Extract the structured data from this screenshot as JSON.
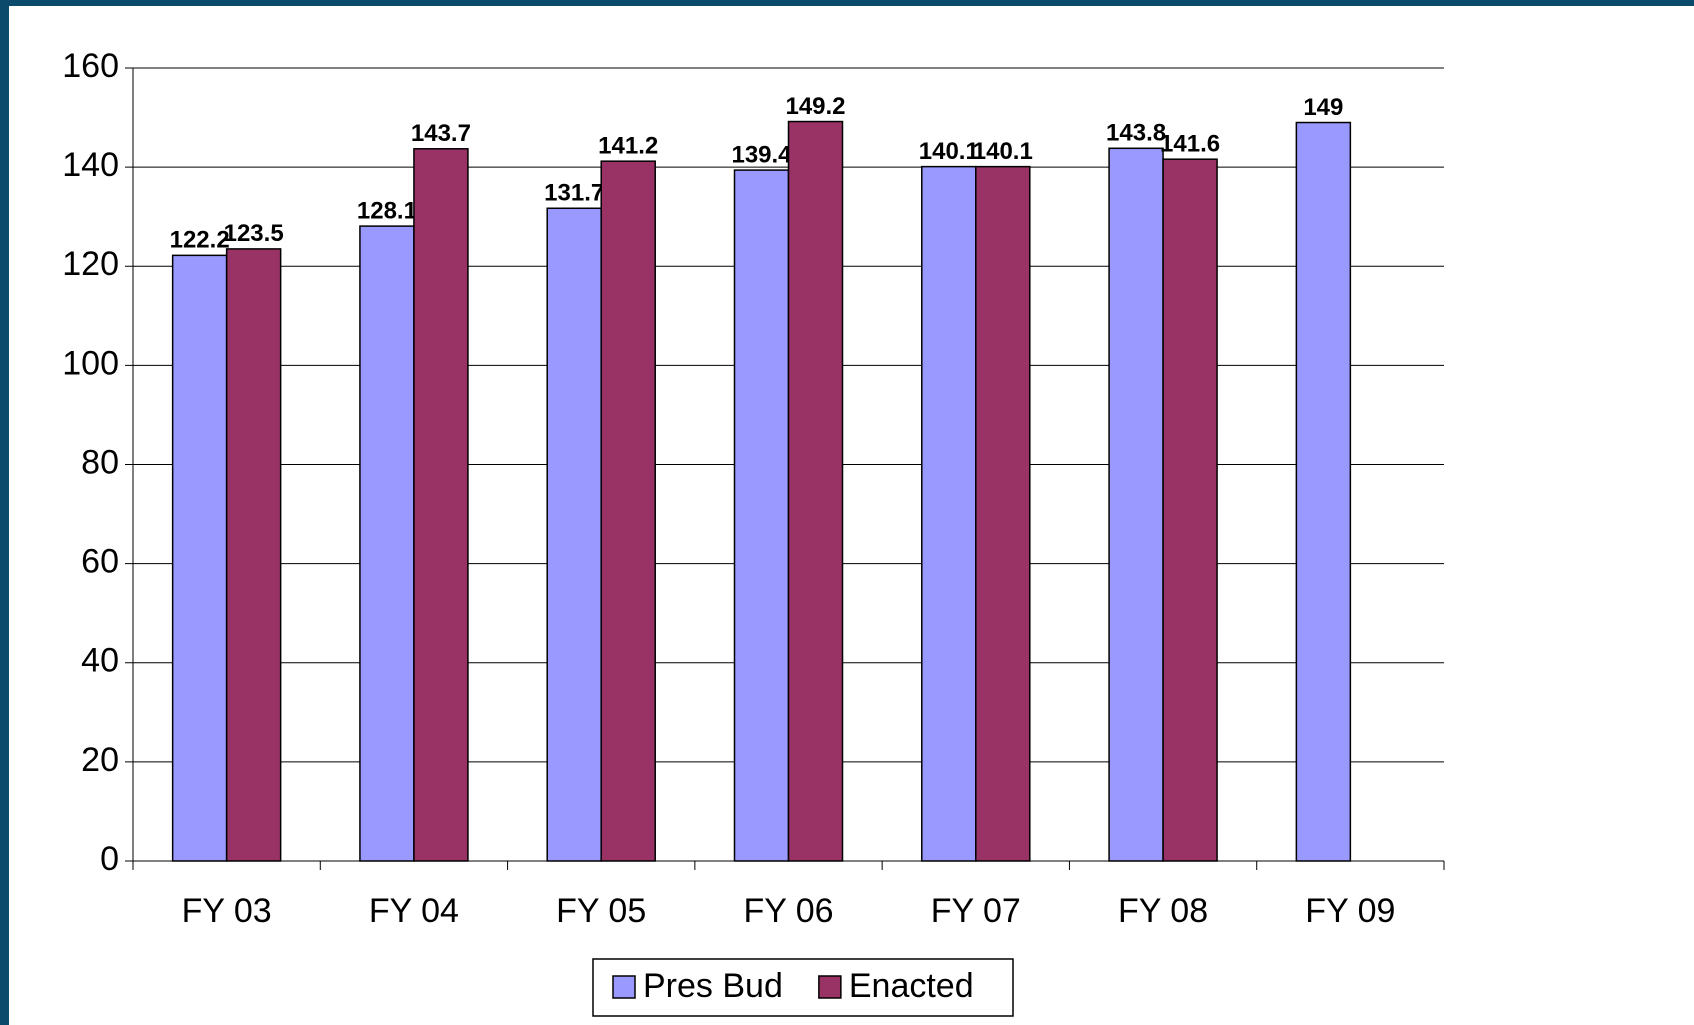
{
  "chart_data": {
    "type": "bar",
    "categories": [
      "FY 03",
      "FY 04",
      "FY 05",
      "FY 06",
      "FY 07",
      "FY 08",
      "FY 09"
    ],
    "series": [
      {
        "name": "Pres Bud",
        "color": "#9999ff",
        "values": [
          122.2,
          128.1,
          131.7,
          139.4,
          140.1,
          143.8,
          149
        ]
      },
      {
        "name": "Enacted",
        "color": "#993366",
        "values": [
          123.5,
          143.7,
          141.2,
          149.2,
          140.1,
          141.6,
          null
        ]
      }
    ],
    "ylim": [
      0,
      160
    ],
    "yticks": [
      0,
      20,
      40,
      60,
      80,
      100,
      120,
      140,
      160
    ],
    "grid": true
  }
}
